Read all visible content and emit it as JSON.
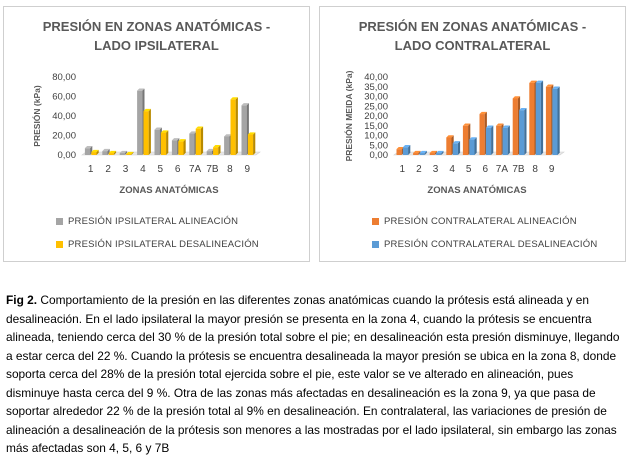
{
  "chart_data": [
    {
      "type": "bar",
      "title_lines": [
        "PRESIÓN EN ZONAS ANATÓMICAS -",
        "LADO IPSILATERAL"
      ],
      "xlabel": "ZONAS ANATÓMICAS",
      "ylabel": "PRESIÓN (kPa)",
      "ylim": [
        0,
        80
      ],
      "yticks": [
        "0,00",
        "20,00",
        "40,00",
        "60,00",
        "80,00"
      ],
      "categories": [
        "1",
        "2",
        "3",
        "4",
        "5",
        "6",
        "7A",
        "7B",
        "8",
        "9"
      ],
      "series": [
        {
          "name": "PRESIÓN IPSILATERAL ALINEACIÓN",
          "color": "#a5a5a5",
          "values": [
            7,
            4,
            2,
            66,
            26,
            15,
            22,
            4,
            19,
            51
          ]
        },
        {
          "name": "PRESIÓN IPSILATERAL DESALINEACIÓN",
          "color": "#ffc000",
          "values": [
            3,
            2,
            1,
            45,
            23,
            14,
            27,
            8,
            57,
            21
          ]
        }
      ]
    },
    {
      "type": "bar",
      "title_lines": [
        "PRESIÓN EN ZONAS ANATÓMICAS -",
        "LADO CONTRALATERAL"
      ],
      "xlabel": "ZONAS ANATÓMICAS",
      "ylabel": "PRESIÓN MEIDA (kPa)",
      "ylim": [
        0,
        40
      ],
      "yticks": [
        "0,00",
        "5,00",
        "10,00",
        "15,00",
        "20,00",
        "25,00",
        "30,00",
        "35,00",
        "40,00"
      ],
      "categories": [
        "1",
        "2",
        "3",
        "4",
        "5",
        "6",
        "7A",
        "7B",
        "8",
        "9"
      ],
      "series": [
        {
          "name": "PRESIÓN CONTRALATERAL ALINEACIÓN",
          "color": "#ed7d31",
          "values": [
            3,
            1,
            1,
            9,
            15,
            21,
            15,
            29,
            37,
            35
          ]
        },
        {
          "name": "PRESIÓN CONTRALATERAL DESALINEACIÓN",
          "color": "#5b9bd5",
          "values": [
            4,
            1,
            1,
            6,
            8,
            14,
            14,
            23,
            37,
            34
          ]
        }
      ]
    }
  ],
  "caption": {
    "label": "Fig 2.",
    "text": " Comportamiento de la presión en las diferentes zonas anatómicas cuando la prótesis está alineada y en desalineación. En el lado ipsilateral la mayor presión se presenta en la zona 4, cuando la prótesis se encuentra alineada, teniendo cerca del 30 % de la presión total sobre el pie; en desalineación esta presión disminuye, llegando a estar cerca del 22 %. Cuando la prótesis se encuentra desalineada la mayor presión se ubica en la zona 8, donde soporta cerca del 28% de la presión total ejercida sobre el pie, este valor se ve alterado en alineación, pues disminuye hasta cerca del 9 %.  Otra de las zonas más afectadas en desalineación es la zona 9, ya que pasa de soportar alrededor 22 % de la presión total al 9% en desalineación. En contralateral, las variaciones de presión de alineación a desalineación de la prótesis son menores a las mostradas por el lado ipsilateral, sin embargo las zonas más afectadas son 4, 5, 6 y 7B"
  }
}
